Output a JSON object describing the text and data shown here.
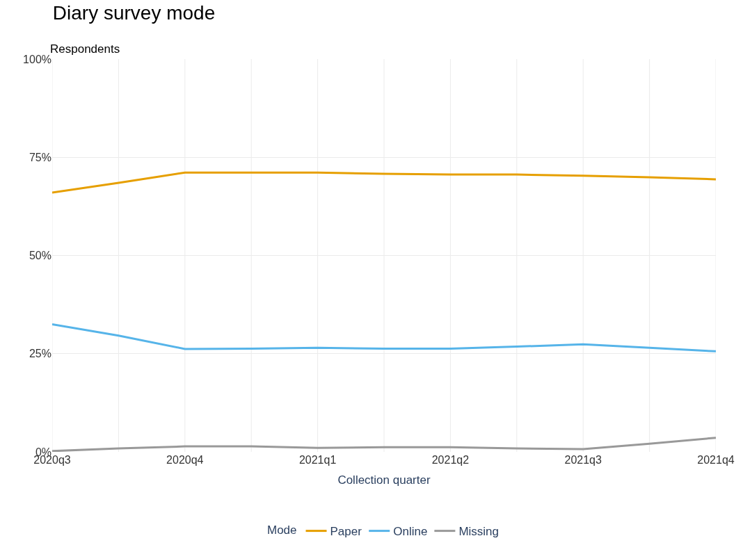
{
  "chart_data": {
    "type": "line",
    "title": "Diary survey mode",
    "subtitle": "Respondents",
    "xlabel": "Collection quarter",
    "legend_title": "Mode",
    "categories": [
      "2020q3",
      null,
      "2020q4",
      null,
      "2021q1",
      null,
      "2021q2",
      null,
      "2021q3",
      null,
      "2021q4"
    ],
    "series": [
      {
        "name": "Paper",
        "color": "#e69f00",
        "values": [
          66.0,
          68.5,
          71.1,
          71.1,
          71.1,
          70.8,
          70.6,
          70.6,
          70.3,
          69.9,
          69.4
        ]
      },
      {
        "name": "Online",
        "color": "#56b4e9",
        "values": [
          32.5,
          29.6,
          26.2,
          26.3,
          26.5,
          26.3,
          26.3,
          26.8,
          27.4,
          26.5,
          25.6
        ]
      },
      {
        "name": "Missing",
        "color": "#999999",
        "values": [
          0.2,
          0.9,
          1.4,
          1.4,
          1.0,
          1.2,
          1.2,
          0.9,
          0.7,
          2.1,
          3.6
        ]
      }
    ],
    "ylim": [
      0,
      100
    ],
    "yticks": [
      {
        "value": 0,
        "label": "0%"
      },
      {
        "value": 25,
        "label": "25%"
      },
      {
        "value": 50,
        "label": "50%"
      },
      {
        "value": 75,
        "label": "75%"
      },
      {
        "value": 100,
        "label": "100%"
      }
    ],
    "grid": true,
    "legend": "bottom",
    "line_style": "solid",
    "marker": "none"
  }
}
